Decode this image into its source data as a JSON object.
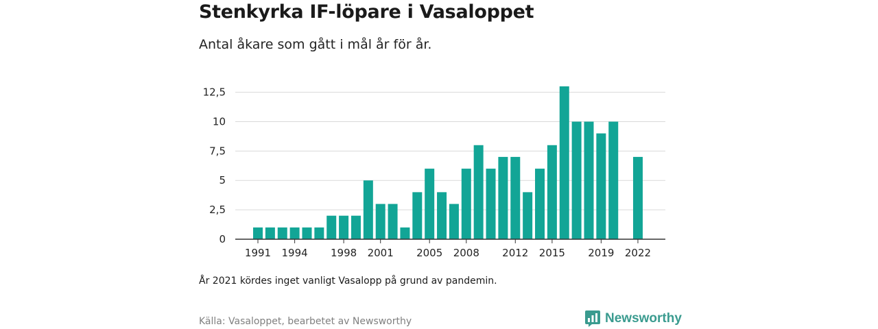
{
  "title": "Stenkyrka IF-löpare i Vasaloppet",
  "subtitle": "Antal åkare som gått i mål år för år.",
  "note": "År 2021 kördes inget vanligt Vasalopp på grund av pandemin.",
  "source": "Källa: Vasaloppet, bearbetet av Newsworthy",
  "brand": {
    "name": "Newsworthy",
    "icon": "newsworthy-logo-icon",
    "color": "#3a9b8f"
  },
  "colors": {
    "bar": "#12a596",
    "grid": "#d9d9d9",
    "axis": "#333333"
  },
  "chart_data": {
    "type": "bar",
    "x": [
      1991,
      1992,
      1993,
      1994,
      1995,
      1996,
      1997,
      1998,
      1999,
      2000,
      2001,
      2002,
      2003,
      2004,
      2005,
      2006,
      2007,
      2008,
      2009,
      2010,
      2011,
      2012,
      2013,
      2014,
      2015,
      2016,
      2017,
      2018,
      2019,
      2020,
      2021,
      2022
    ],
    "values": [
      1,
      1,
      1,
      1,
      1,
      1,
      2,
      2,
      2,
      5,
      3,
      3,
      1,
      4,
      6,
      4,
      3,
      6,
      8,
      6,
      7,
      7,
      4,
      6,
      8,
      13,
      10,
      10,
      9,
      10,
      null,
      7
    ],
    "x_tick_labels": [
      "1991",
      "1994",
      "1998",
      "2001",
      "2005",
      "2008",
      "2012",
      "2015",
      "2019",
      "2022"
    ],
    "y_ticks": [
      0,
      2.5,
      5,
      7.5,
      10,
      12.5
    ],
    "y_tick_labels": [
      "0",
      "2,5",
      "5",
      "7,5",
      "10",
      "12,5"
    ],
    "ylim": [
      0,
      13
    ],
    "grid": true,
    "legend": false
  }
}
